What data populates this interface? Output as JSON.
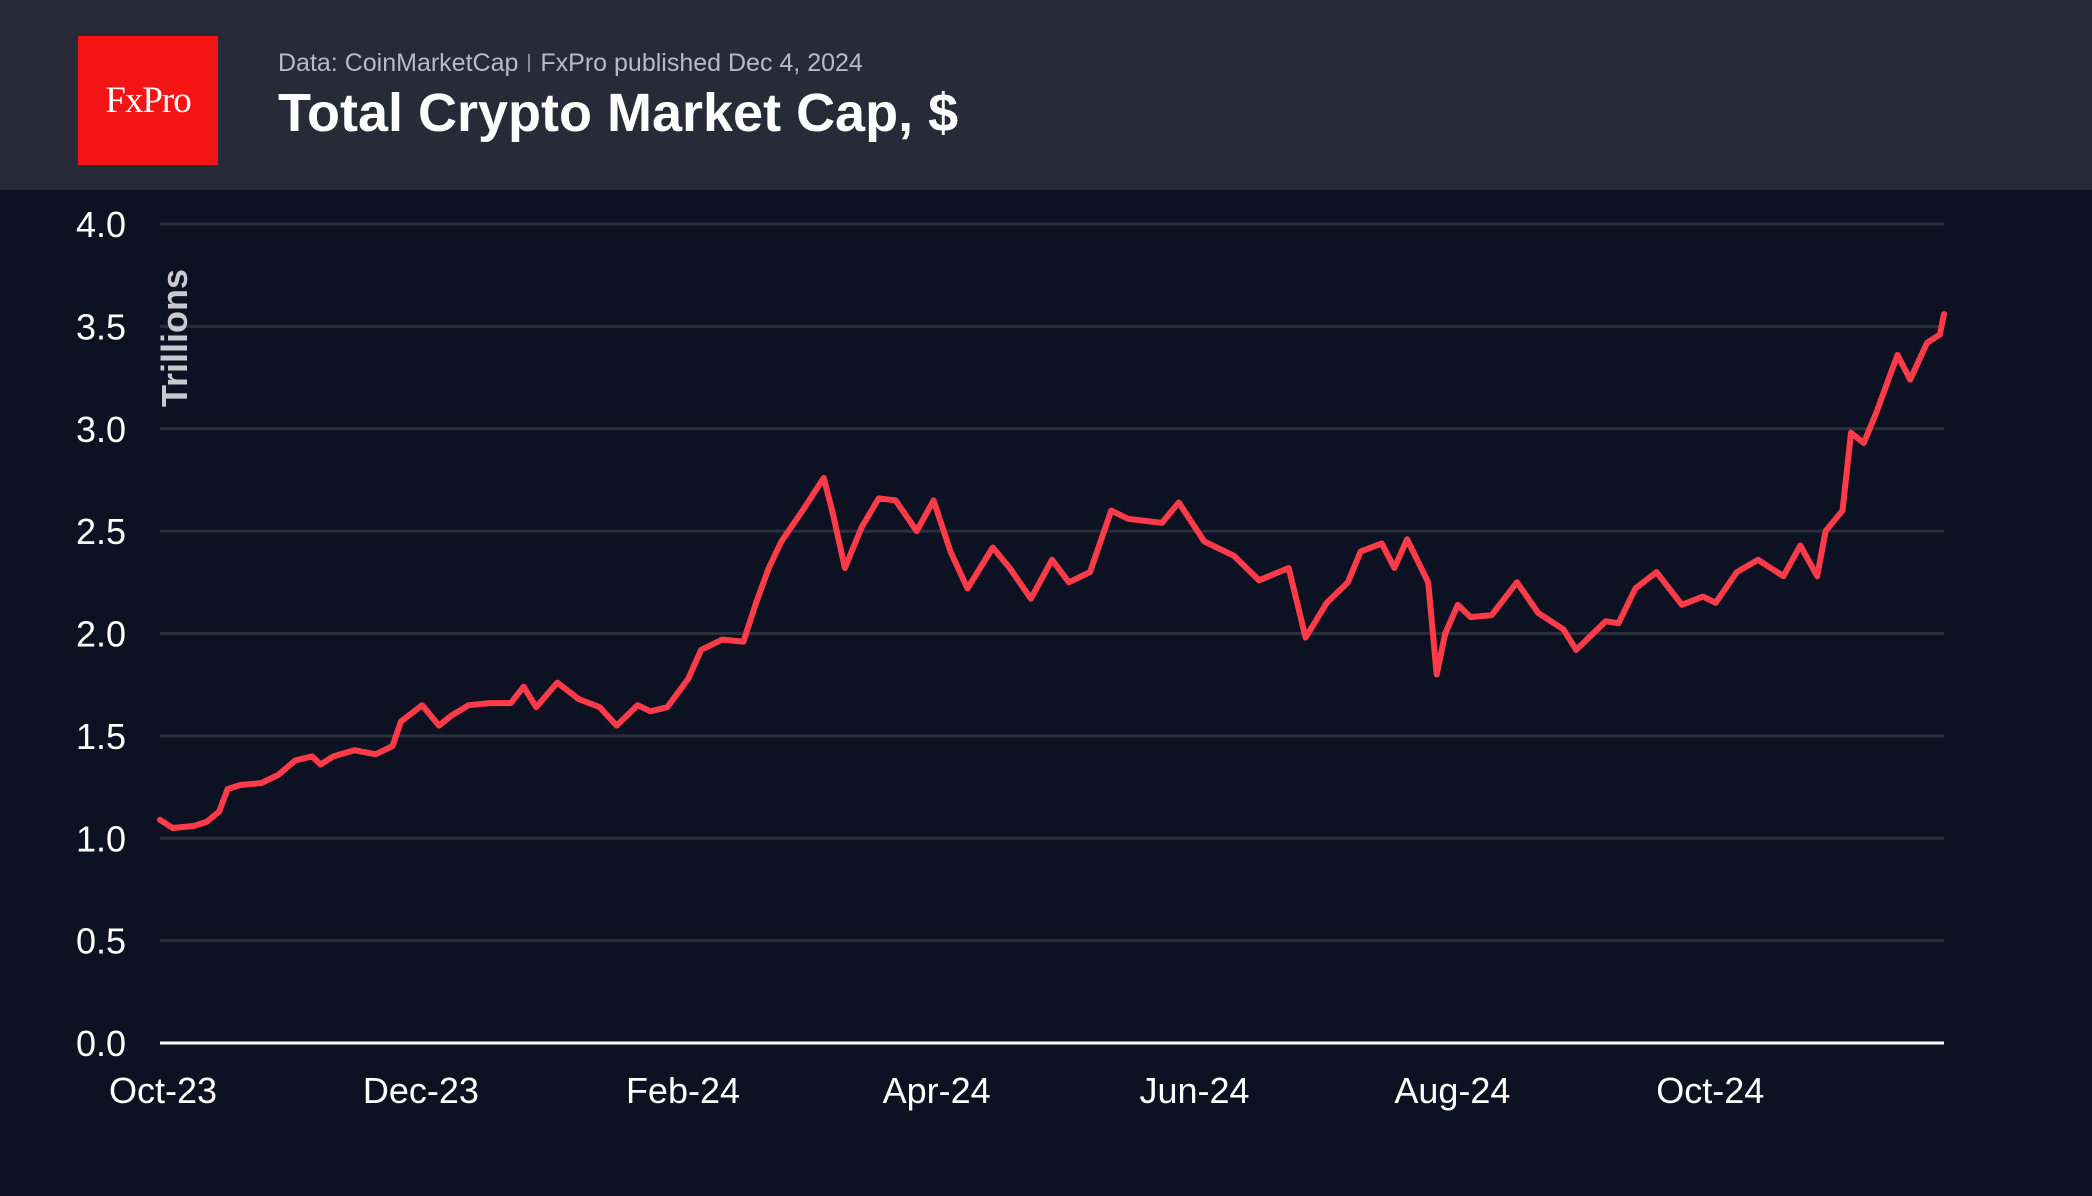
{
  "header": {
    "logo_text": "FxPro",
    "source": "Data: CoinMarketCap",
    "published": "FxPro published Dec 4, 2024",
    "title": "Total Crypto Market Cap, $"
  },
  "colors": {
    "line": "#ff3b4a",
    "background": "#0c1221",
    "header": "#282a37",
    "logo": "#f41414",
    "grid": "#2b2f3c"
  },
  "chart_data": {
    "type": "line",
    "title": "Total Crypto Market Cap, $",
    "ylabel": "Trillions",
    "xlabel": "",
    "ylim": [
      0,
      4
    ],
    "xlim": [
      "2023-10-09",
      "2024-12-04"
    ],
    "yticks": [
      "0.0",
      "0.5",
      "1.0",
      "1.5",
      "2.0",
      "2.5",
      "3.0",
      "3.5",
      "4.0"
    ],
    "xticks": [
      {
        "date": "2023-10-09",
        "label": "Oct-23"
      },
      {
        "date": "2023-12-09",
        "label": "Dec-23"
      },
      {
        "date": "2024-02-09",
        "label": "Feb-24"
      },
      {
        "date": "2024-04-09",
        "label": "Apr-24"
      },
      {
        "date": "2024-06-09",
        "label": "Jun-24"
      },
      {
        "date": "2024-08-09",
        "label": "Aug-24"
      },
      {
        "date": "2024-10-09",
        "label": "Oct-24"
      }
    ],
    "grid": true,
    "series": [
      {
        "points": [
          [
            "2023-10-09",
            1.09
          ],
          [
            "2023-10-12",
            1.05
          ],
          [
            "2023-10-17",
            1.06
          ],
          [
            "2023-10-20",
            1.08
          ],
          [
            "2023-10-23",
            1.13
          ],
          [
            "2023-10-25",
            1.24
          ],
          [
            "2023-10-28",
            1.26
          ],
          [
            "2023-11-02",
            1.27
          ],
          [
            "2023-11-06",
            1.31
          ],
          [
            "2023-11-10",
            1.38
          ],
          [
            "2023-11-14",
            1.4
          ],
          [
            "2023-11-16",
            1.36
          ],
          [
            "2023-11-19",
            1.4
          ],
          [
            "2023-11-24",
            1.43
          ],
          [
            "2023-11-29",
            1.41
          ],
          [
            "2023-12-03",
            1.45
          ],
          [
            "2023-12-05",
            1.57
          ],
          [
            "2023-12-10",
            1.65
          ],
          [
            "2023-12-14",
            1.55
          ],
          [
            "2023-12-17",
            1.6
          ],
          [
            "2023-12-21",
            1.65
          ],
          [
            "2023-12-26",
            1.66
          ],
          [
            "2023-12-31",
            1.66
          ],
          [
            "2024-01-03",
            1.74
          ],
          [
            "2024-01-06",
            1.64
          ],
          [
            "2024-01-11",
            1.76
          ],
          [
            "2024-01-16",
            1.68
          ],
          [
            "2024-01-21",
            1.64
          ],
          [
            "2024-01-25",
            1.55
          ],
          [
            "2024-01-30",
            1.65
          ],
          [
            "2024-02-02",
            1.62
          ],
          [
            "2024-02-06",
            1.64
          ],
          [
            "2024-02-11",
            1.78
          ],
          [
            "2024-02-14",
            1.92
          ],
          [
            "2024-02-19",
            1.97
          ],
          [
            "2024-02-24",
            1.96
          ],
          [
            "2024-02-27",
            2.15
          ],
          [
            "2024-03-01",
            2.32
          ],
          [
            "2024-03-04",
            2.45
          ],
          [
            "2024-03-09",
            2.6
          ],
          [
            "2024-03-14",
            2.76
          ],
          [
            "2024-03-16",
            2.6
          ],
          [
            "2024-03-19",
            2.32
          ],
          [
            "2024-03-23",
            2.52
          ],
          [
            "2024-03-27",
            2.66
          ],
          [
            "2024-03-31",
            2.65
          ],
          [
            "2024-04-05",
            2.5
          ],
          [
            "2024-04-09",
            2.65
          ],
          [
            "2024-04-13",
            2.4
          ],
          [
            "2024-04-17",
            2.22
          ],
          [
            "2024-04-23",
            2.42
          ],
          [
            "2024-04-27",
            2.32
          ],
          [
            "2024-05-02",
            2.17
          ],
          [
            "2024-05-07",
            2.36
          ],
          [
            "2024-05-11",
            2.25
          ],
          [
            "2024-05-16",
            2.3
          ],
          [
            "2024-05-21",
            2.6
          ],
          [
            "2024-05-25",
            2.56
          ],
          [
            "2024-06-02",
            2.54
          ],
          [
            "2024-06-06",
            2.64
          ],
          [
            "2024-06-12",
            2.45
          ],
          [
            "2024-06-19",
            2.38
          ],
          [
            "2024-06-25",
            2.26
          ],
          [
            "2024-07-02",
            2.32
          ],
          [
            "2024-07-06",
            1.98
          ],
          [
            "2024-07-11",
            2.15
          ],
          [
            "2024-07-16",
            2.25
          ],
          [
            "2024-07-19",
            2.4
          ],
          [
            "2024-07-24",
            2.44
          ],
          [
            "2024-07-27",
            2.32
          ],
          [
            "2024-07-30",
            2.46
          ],
          [
            "2024-08-04",
            2.25
          ],
          [
            "2024-08-06",
            1.8
          ],
          [
            "2024-08-08",
            2.0
          ],
          [
            "2024-08-11",
            2.14
          ],
          [
            "2024-08-14",
            2.08
          ],
          [
            "2024-08-19",
            2.09
          ],
          [
            "2024-08-25",
            2.25
          ],
          [
            "2024-08-30",
            2.1
          ],
          [
            "2024-09-05",
            2.02
          ],
          [
            "2024-09-08",
            1.92
          ],
          [
            "2024-09-15",
            2.06
          ],
          [
            "2024-09-18",
            2.05
          ],
          [
            "2024-09-22",
            2.22
          ],
          [
            "2024-09-27",
            2.3
          ],
          [
            "2024-10-03",
            2.14
          ],
          [
            "2024-10-08",
            2.18
          ],
          [
            "2024-10-11",
            2.15
          ],
          [
            "2024-10-16",
            2.3
          ],
          [
            "2024-10-21",
            2.36
          ],
          [
            "2024-10-27",
            2.28
          ],
          [
            "2024-10-31",
            2.43
          ],
          [
            "2024-11-04",
            2.28
          ],
          [
            "2024-11-06",
            2.5
          ],
          [
            "2024-11-10",
            2.6
          ],
          [
            "2024-11-12",
            2.98
          ],
          [
            "2024-11-15",
            2.93
          ],
          [
            "2024-11-18",
            3.08
          ],
          [
            "2024-11-23",
            3.36
          ],
          [
            "2024-11-26",
            3.24
          ],
          [
            "2024-11-30",
            3.42
          ],
          [
            "2024-12-03",
            3.46
          ],
          [
            "2024-12-04",
            3.56
          ]
        ]
      }
    ]
  }
}
